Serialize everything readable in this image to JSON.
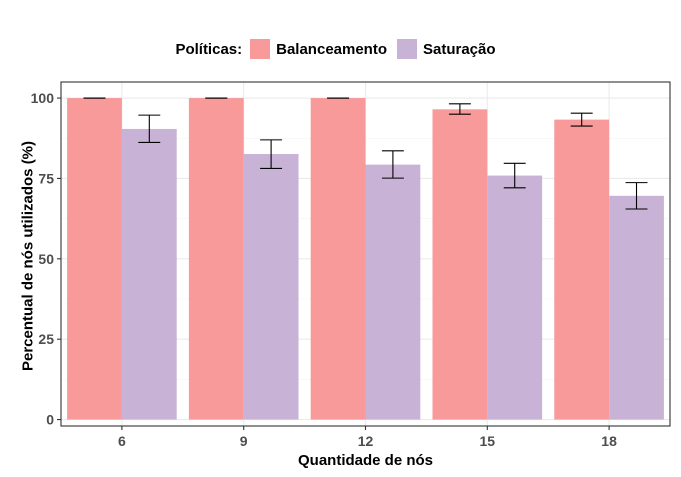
{
  "chart_data": {
    "type": "bar",
    "legend": {
      "title": "Políticas:",
      "position": "top",
      "entries": [
        {
          "name": "Balanceamento",
          "color": "#F8999A"
        },
        {
          "name": "Saturação",
          "color": "#C8B3D7"
        }
      ]
    },
    "xlabel": "Quantidade de nós",
    "ylabel": "Percentual de nós utilizados (%)",
    "categories": [
      "6",
      "9",
      "12",
      "15",
      "18"
    ],
    "ylim": [
      -2,
      105
    ],
    "yticks": [
      0,
      25,
      50,
      75,
      100
    ],
    "grid": true,
    "series": [
      {
        "name": "Balanceamento",
        "color": "#F8999A",
        "values": [
          100,
          100,
          100,
          96.5,
          93.3
        ],
        "error_low": [
          100,
          100,
          100,
          95.0,
          91.3
        ],
        "error_high": [
          100,
          100,
          100,
          98.2,
          95.3
        ]
      },
      {
        "name": "Saturação",
        "color": "#C8B3D7",
        "values": [
          90.4,
          82.6,
          79.3,
          75.9,
          69.6
        ],
        "error_low": [
          86.2,
          78.1,
          75.1,
          72.1,
          65.5
        ],
        "error_high": [
          94.7,
          87.0,
          83.6,
          79.7,
          73.7
        ]
      }
    ]
  }
}
